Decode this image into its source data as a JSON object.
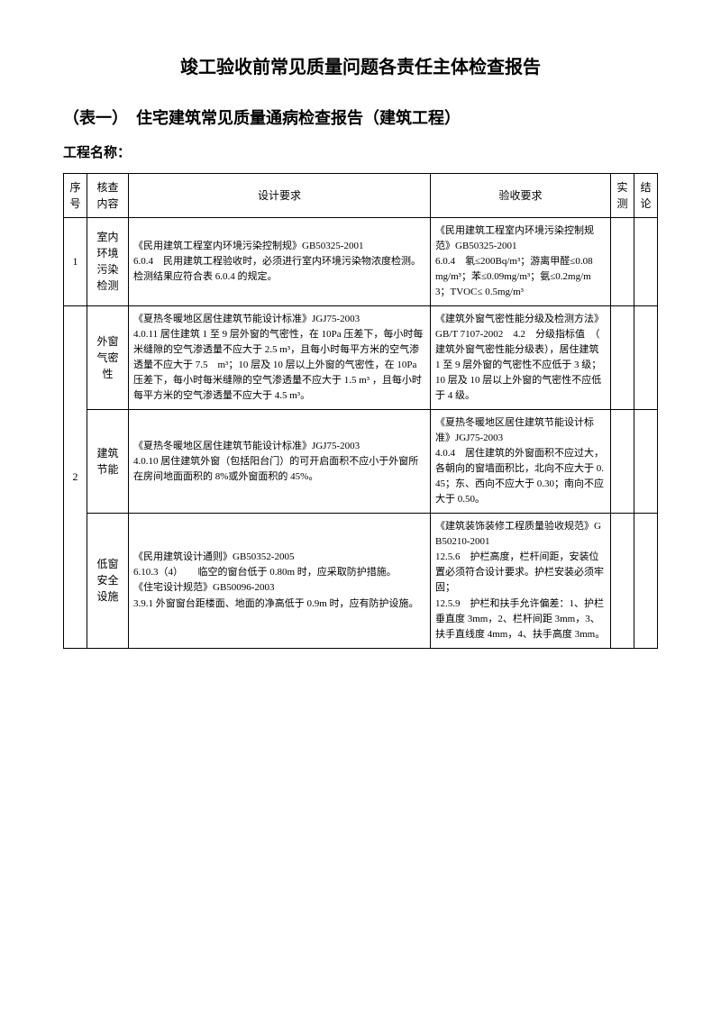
{
  "title_main": "竣工验收前常见质量问题各责任主体检查报告",
  "title_sub": "（表一）　住宅建筑常见质量通病检查报告（建筑工程）",
  "project_label": "工程名称：",
  "headers": {
    "seq": "序号",
    "item": "核查内容",
    "design": "设计要求",
    "accept": "验收要求",
    "measure": "实测",
    "conclusion": "结论"
  },
  "rows": [
    {
      "seq": "1",
      "item": "室内环境污染检测",
      "design": "《民用建筑工程室内环境污染控制规》GB50325-2001\n6.0.4　民用建筑工程验收时，必须进行室内环境污染物浓度检测。检测结果应符合表 6.0.4 的规定。",
      "accept": "《民用建筑工程室内环境污染控制规范》GB50325-2001\n6.0.4　氡≤200Bq/m³；游离甲醛≤0.08　mg/m³；苯≤0.09mg/m³；氨≤0.2mg/m3；TVOC≤ 0.5mg/m³",
      "measure": "",
      "conclusion": ""
    },
    {
      "seq": "2",
      "sub": [
        {
          "item": "外窗气密性",
          "design": "《夏热冬暖地区居住建筑节能设计标准》JGJ75-2003\n4.0.11 居住建筑 1 至 9 层外窗的气密性，在 10Pa 压差下，每小时每米缝隙的空气渗透量不应大于 2.5 m³，且每小时每平方米的空气渗透量不应大于 7.5　m³；10 层及 10 层以上外窗的气密性，在 10Pa 压差下，每小时每米缝隙的空气渗透量不应大于 1.5 m³ ，且每小时每平方米的空气渗透量不应大于 4.5 m³。",
          "accept": "《建筑外窗气密性能分级及检测方法》GB/T 7107-2002　4.2　分级指标值　（　建筑外窗气密性能分级表），居住建筑 1 至 9 层外窗的气密性不应低于 3 级；10 层及 10 层以上外窗的气密性不应低于 4 级。"
        },
        {
          "item": "建筑节能",
          "design": "《夏热冬暖地区居住建筑节能设计标准》JGJ75-2003\n4.0.10 居住建筑外窗（包括阳台门）的可开启面积不应小于外窗所在房间地面面积的 8%或外窗面积的 45%。",
          "accept": "《夏热冬暖地区居住建筑节能设计标准》JGJ75-2003\n4.0.4　居住建筑的外窗面积不应过大，各朝向的窗墙面积比，北向不应大于 0.45；东、西向不应大于 0.30；南向不应大于 0.50。"
        },
        {
          "item": "低窗安全设施",
          "design": "《民用建筑设计通则》GB50352-2005\n6.10.3（4）　　临空的窗台低于 0.80m 时，应采取防护措施。\n《住宅设计规范》GB50096-2003\n3.9.1 外窗窗台距楼面、地面的净高低于 0.9m 时，应有防护设施。",
          "accept": "《建筑装饰装修工程质量验收规范》GB50210-2001\n12.5.6　护栏高度，栏杆间距，安装位置必须符合设计要求。护栏安装必须牢固；\n12.5.9　护栏和扶手允许偏差：1、护栏垂直度 3mm，2、栏杆间距 3mm，3、扶手直线度 4mm，4、扶手高度 3mm。"
        }
      ]
    }
  ]
}
